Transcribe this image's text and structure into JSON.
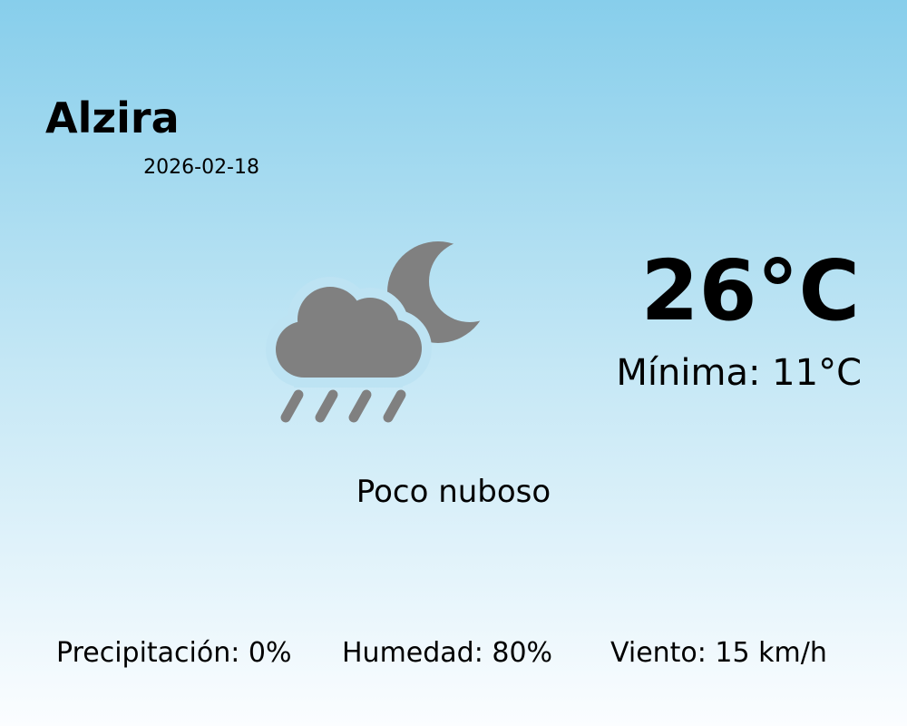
{
  "location": {
    "city": "Alzira",
    "date": "2026-02-18"
  },
  "current": {
    "temperature": "26°C",
    "minimum": "Mínima: 11°C",
    "description": "Poco nuboso",
    "icon": "moon-cloud-rain-icon"
  },
  "stats": {
    "precipitation": "Precipitación: 0%",
    "humidity": "Humedad: 80%",
    "wind": "Viento: 15 km/h"
  },
  "colors": {
    "background_top": "#87ceeb",
    "background_bottom": "#fbfdff",
    "icon": "#808080",
    "text": "#000000"
  }
}
